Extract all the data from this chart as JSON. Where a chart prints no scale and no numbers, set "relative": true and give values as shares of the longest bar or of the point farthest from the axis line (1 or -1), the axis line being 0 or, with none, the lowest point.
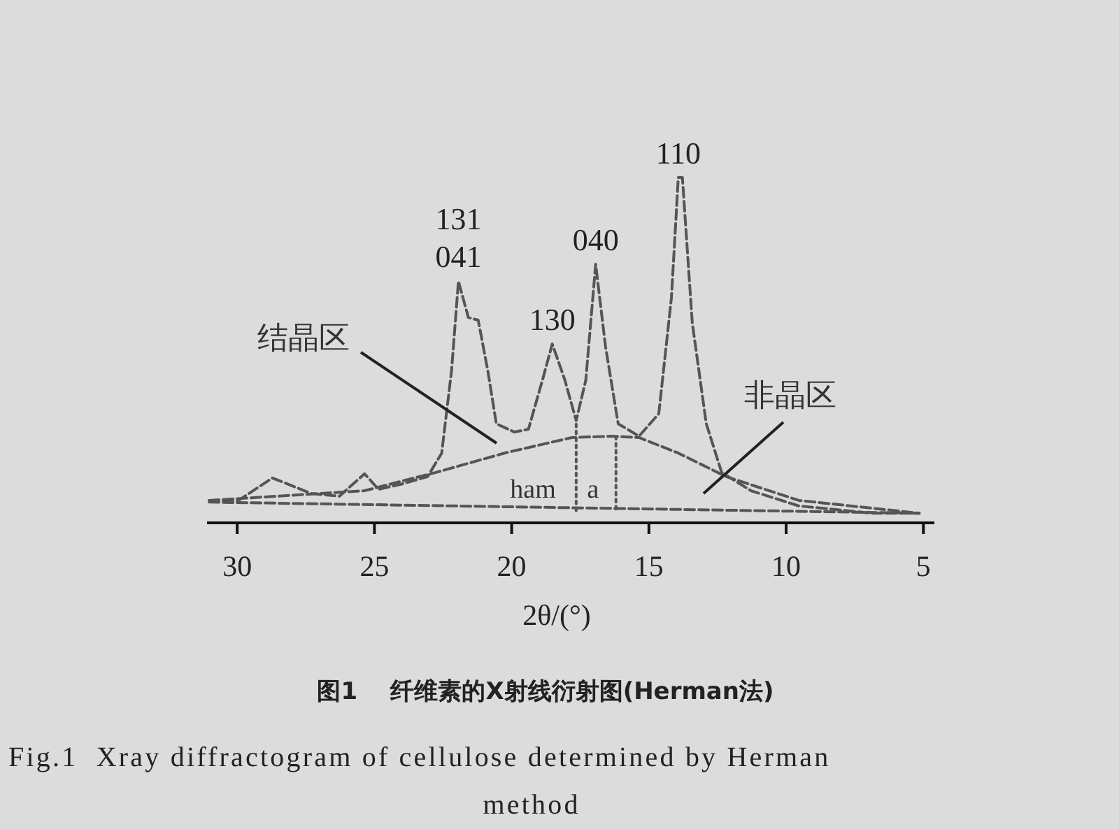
{
  "chart_data": {
    "type": "line",
    "relative": true,
    "title": "图1    纤维素的X射线衍射图(Herman法)",
    "subtitle": "Fig.1  Xray diffractogram of cellulose determined by Herman method",
    "xlabel": "2θ/(°)",
    "xlim": [
      31.1,
      4.6
    ],
    "xticks": [
      30,
      25,
      20,
      15,
      10,
      5
    ],
    "grid": false,
    "series": [
      {
        "color": "#555555",
        "line_style": "dashed",
        "x": [
          31.02,
          29.95,
          28.72,
          27.3,
          26.28,
          25.36,
          24.85,
          23.98,
          23.06,
          22.55,
          22.19,
          21.94,
          21.58,
          21.22,
          20.87,
          20.56,
          19.9,
          19.39,
          18.88,
          18.52,
          18.06,
          17.65,
          17.3,
          16.94,
          16.58,
          16.12,
          15.36,
          14.64,
          14.18,
          13.93,
          13.78,
          13.42,
          12.91,
          12.35,
          11.28,
          9.54,
          6.89,
          5.15
        ],
        "values": [
          0.065,
          0.065,
          0.13,
          0.085,
          0.077,
          0.142,
          0.097,
          0.113,
          0.134,
          0.202,
          0.441,
          0.7,
          0.595,
          0.587,
          0.441,
          0.287,
          0.263,
          0.271,
          0.413,
          0.518,
          0.413,
          0.296,
          0.413,
          0.749,
          0.51,
          0.287,
          0.251,
          0.316,
          0.652,
          1,
          1,
          0.579,
          0.287,
          0.146,
          0.093,
          0.049,
          0.028,
          0.028
        ]
      },
      {
        "color": "#555555",
        "line_style": "dashed",
        "x": [
          31.02,
          25.36,
          22.76,
          20.26,
          17.81,
          16.38,
          15.36,
          13.93,
          12.19,
          9.54,
          5.15
        ],
        "values": [
          0.065,
          0.093,
          0.146,
          0.202,
          0.247,
          0.251,
          0.247,
          0.202,
          0.134,
          0.065,
          0.028
        ]
      },
      {
        "color": "#555555",
        "line_style": "dashed",
        "x": [
          31.02,
          5.15
        ],
        "values": [
          0.06,
          0.028
        ]
      },
      {
        "color": "#555555",
        "line_style": "dotted",
        "x": [
          17.65,
          17.65
        ],
        "values": [
          0.035,
          0.296
        ]
      },
      {
        "color": "#555555",
        "line_style": "dotted",
        "x": [
          16.2,
          16.2
        ],
        "values": [
          0.04,
          0.25
        ]
      }
    ],
    "annotations": [
      {
        "text": "110",
        "x": 13.93,
        "y": 1
      },
      {
        "text": "040",
        "x": 16.94,
        "y": 0.749
      },
      {
        "text": "130",
        "x": 18.52,
        "y": 0.518
      },
      {
        "text": "131\n041",
        "x": 21.94,
        "y": 0.7
      },
      "结晶区",
      "非晶区",
      "ham",
      "a"
    ]
  }
}
